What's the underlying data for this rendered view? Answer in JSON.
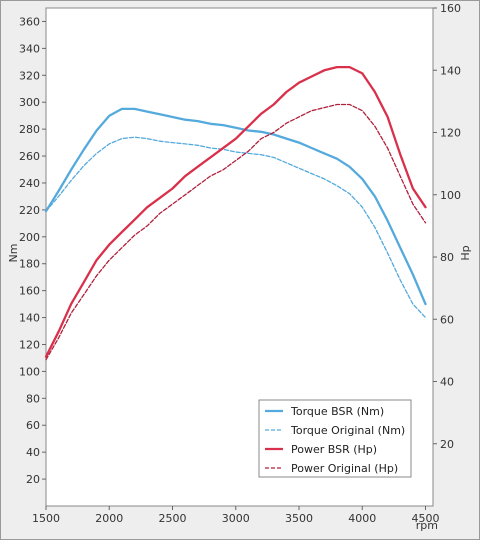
{
  "chart_data": {
    "type": "line",
    "xlabel": "rpm",
    "ylabel_left": "Nm",
    "ylabel_right": "Hp",
    "xlim": [
      1500,
      4550
    ],
    "ylim_left": [
      0,
      370
    ],
    "ylim_right": [
      0,
      160
    ],
    "x_ticks": [
      1500,
      2000,
      2500,
      3000,
      3500,
      4000,
      4500
    ],
    "y_ticks_left": [
      20,
      40,
      60,
      80,
      100,
      120,
      140,
      160,
      180,
      200,
      220,
      240,
      260,
      280,
      300,
      320,
      340,
      360
    ],
    "y_ticks_right": [
      20,
      40,
      60,
      80,
      100,
      120,
      140,
      160
    ],
    "grid": false,
    "legend_position": "bottom-right",
    "series": [
      {
        "name": "Torque BSR (Nm)",
        "axis": "left",
        "color": "#55aadd",
        "dashed": false,
        "x": [
          1500,
          1600,
          1700,
          1800,
          1900,
          2000,
          2100,
          2200,
          2300,
          2400,
          2500,
          2600,
          2700,
          2800,
          2900,
          3000,
          3100,
          3200,
          3300,
          3400,
          3500,
          3600,
          3700,
          3800,
          3900,
          4000,
          4100,
          4200,
          4300,
          4400,
          4500
        ],
        "y": [
          219,
          234,
          250,
          265,
          279,
          290,
          295,
          295,
          293,
          291,
          289,
          287,
          286,
          284,
          283,
          281,
          279,
          278,
          276,
          273,
          270,
          266,
          262,
          258,
          252,
          243,
          230,
          212,
          192,
          172,
          150
        ]
      },
      {
        "name": "Torque Original (Nm)",
        "axis": "left",
        "color": "#55aadd",
        "dashed": true,
        "x": [
          1500,
          1600,
          1700,
          1800,
          1900,
          2000,
          2100,
          2200,
          2300,
          2400,
          2500,
          2600,
          2700,
          2800,
          2900,
          3000,
          3100,
          3200,
          3300,
          3400,
          3500,
          3600,
          3700,
          3800,
          3900,
          4000,
          4100,
          4200,
          4300,
          4400,
          4500
        ],
        "y": [
          219,
          230,
          242,
          253,
          262,
          269,
          273,
          274,
          273,
          271,
          270,
          269,
          268,
          266,
          265,
          263,
          262,
          261,
          259,
          255,
          251,
          247,
          243,
          238,
          232,
          222,
          207,
          188,
          168,
          150,
          140
        ]
      },
      {
        "name": "Power BSR (Hp)",
        "axis": "right",
        "color": "#d9304b",
        "dashed": false,
        "x": [
          1500,
          1600,
          1700,
          1800,
          1900,
          2000,
          2100,
          2200,
          2300,
          2400,
          2500,
          2600,
          2700,
          2800,
          2900,
          3000,
          3100,
          3200,
          3300,
          3400,
          3500,
          3600,
          3700,
          3800,
          3900,
          4000,
          4100,
          4200,
          4300,
          4400,
          4500
        ],
        "y": [
          48,
          56,
          65,
          72,
          79,
          84,
          88,
          92,
          96,
          99,
          102,
          106,
          109,
          112,
          115,
          118,
          122,
          126,
          129,
          133,
          136,
          138,
          140,
          141,
          141,
          139,
          133,
          125,
          113,
          102,
          96
        ]
      },
      {
        "name": "Power Original (Hp)",
        "axis": "right",
        "color": "#b0203c",
        "dashed": true,
        "x": [
          1500,
          1600,
          1700,
          1800,
          1900,
          2000,
          2100,
          2200,
          2300,
          2400,
          2500,
          2600,
          2700,
          2800,
          2900,
          3000,
          3100,
          3200,
          3300,
          3400,
          3500,
          3600,
          3700,
          3800,
          3900,
          4000,
          4100,
          4200,
          4300,
          4400,
          4500
        ],
        "y": [
          47,
          54,
          62,
          68,
          74,
          79,
          83,
          87,
          90,
          94,
          97,
          100,
          103,
          106,
          108,
          111,
          114,
          118,
          120,
          123,
          125,
          127,
          128,
          129,
          129,
          127,
          122,
          115,
          106,
          97,
          91
        ]
      }
    ]
  }
}
